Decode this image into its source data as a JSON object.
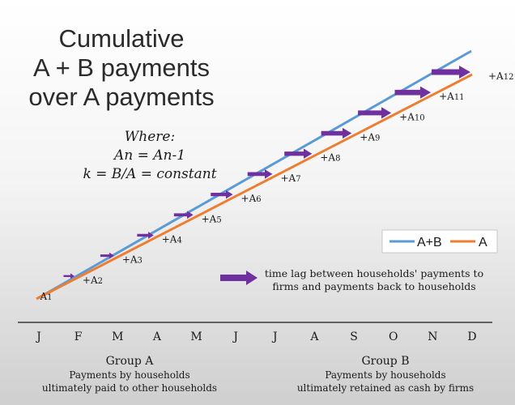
{
  "title": {
    "line1": "Cumulative",
    "line2": "A + B payments",
    "line3": "over A payments"
  },
  "where": {
    "heading": "Where:",
    "line1": "An = An-1",
    "line2": "k = B/A = constant"
  },
  "legend": {
    "series_ab": "A+B",
    "series_a": "A"
  },
  "arrow_note": {
    "line1": "time lag between households' payments to",
    "line2": "firms and payments back to households"
  },
  "group_a": {
    "title": "Group A",
    "line1": "Payments by households",
    "line2": "ultimately paid to other households"
  },
  "group_b": {
    "title": "Group B",
    "line1": "Payments by households",
    "line2": "ultimately retained as cash by firms"
  },
  "colors": {
    "ab_line": "#5b9bd5",
    "a_line": "#ed7d31",
    "arrow": "#7030a0",
    "background_top": "#ffffff",
    "background_bottom": "#cfcfcf"
  },
  "chart_data": {
    "type": "line",
    "categories": [
      "J",
      "F",
      "M",
      "A",
      "M",
      "J",
      "J",
      "A",
      "S",
      "O",
      "N",
      "D"
    ],
    "series": [
      {
        "name": "A+B",
        "values": [
          1,
          2,
          3,
          4,
          5,
          6,
          7,
          8,
          9,
          10,
          11,
          12
        ]
      },
      {
        "name": "A",
        "values": [
          1,
          2,
          3,
          4,
          5,
          6,
          7,
          8,
          9,
          10,
          11,
          12
        ]
      }
    ],
    "point_labels": [
      "A1",
      "+A2",
      "+A3",
      "+A4",
      "+A5",
      "+A6",
      "+A7",
      "+A8",
      "+A9",
      "+A10",
      "+A11",
      "+A12"
    ],
    "grid": false,
    "legend_position": "right"
  }
}
